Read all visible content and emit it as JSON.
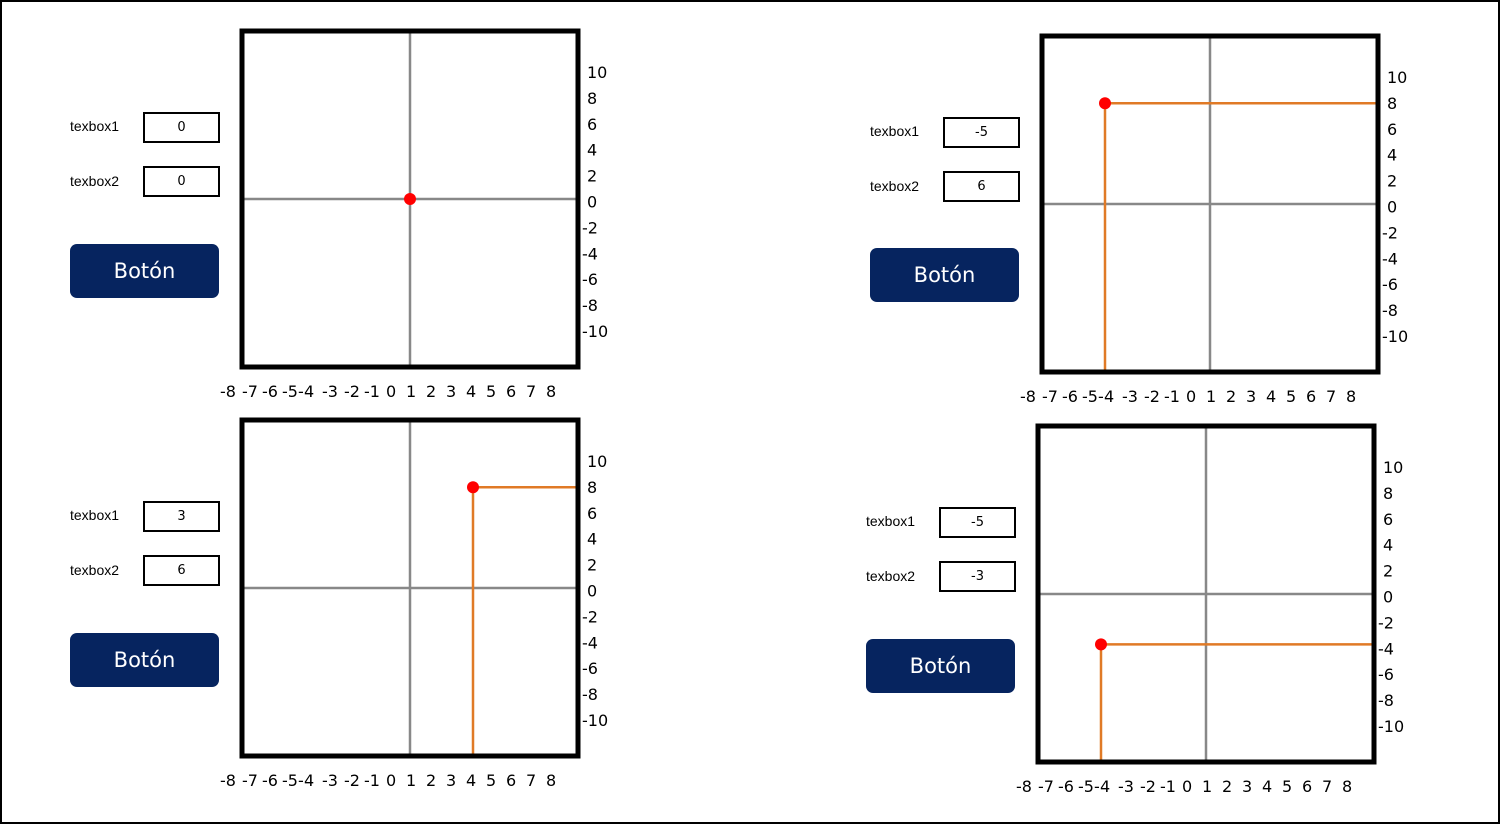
{
  "panels": [
    {
      "textbox1": {
        "label": "texbox1",
        "value": "0"
      },
      "textbox2": {
        "label": "texbox2",
        "value": "0"
      },
      "button_label": "Botón",
      "point": {
        "x": 0,
        "y": 0
      },
      "show_guides": false
    },
    {
      "textbox1": {
        "label": "texbox1",
        "value": "-5"
      },
      "textbox2": {
        "label": "texbox2",
        "value": "6"
      },
      "button_label": "Botón",
      "point": {
        "x": -5,
        "y": 6
      },
      "show_guides": true
    },
    {
      "textbox1": {
        "label": "texbox1",
        "value": "3"
      },
      "textbox2": {
        "label": "texbox2",
        "value": "6"
      },
      "button_label": "Botón",
      "point": {
        "x": 3,
        "y": 6
      },
      "show_guides": true
    },
    {
      "textbox1": {
        "label": "texbox1",
        "value": "-5"
      },
      "textbox2": {
        "label": "texbox2",
        "value": "-3"
      },
      "button_label": "Botón",
      "point": {
        "x": -5,
        "y": -3
      },
      "show_guides": true
    }
  ],
  "axis": {
    "x_ticks": [
      "-8",
      "-7",
      "-6",
      "-5-",
      "4",
      "-3",
      "-2",
      "-1",
      "0",
      "1",
      "2",
      "3",
      "4",
      "5",
      "6",
      "7",
      "8"
    ],
    "y_ticks": [
      "10",
      "8",
      "6",
      "4",
      "2",
      "0",
      "-2",
      "-4",
      "-6",
      "-8",
      "-10"
    ],
    "x_range": [
      -8,
      8
    ],
    "y_range": [
      -10,
      10
    ]
  },
  "colors": {
    "point": "#ff0000",
    "guide": "#e07a26",
    "axes": "#888888",
    "border": "#000000",
    "button": "#06245f"
  }
}
